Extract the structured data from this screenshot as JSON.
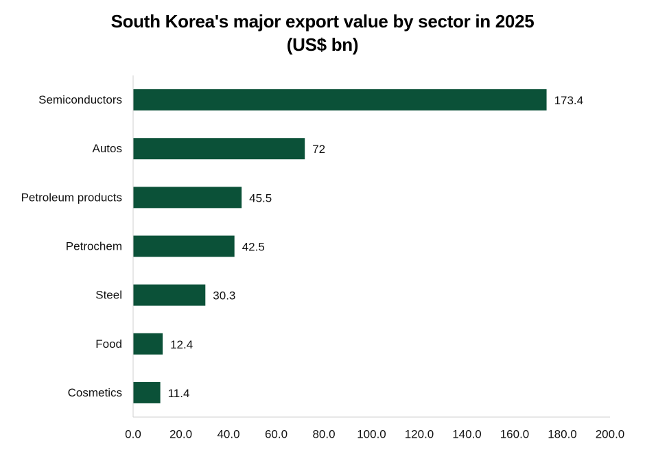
{
  "chart_data": {
    "type": "bar",
    "orientation": "horizontal",
    "title": "South Korea's major export value by sector in 2025",
    "subtitle": "(US$ bn)",
    "xlabel": "",
    "ylabel": "",
    "categories": [
      "Semiconductors",
      "Autos",
      "Petroleum products",
      "Petrochem",
      "Steel",
      "Food",
      "Cosmetics"
    ],
    "values": [
      173.4,
      72,
      45.5,
      42.5,
      30.3,
      12.4,
      11.4
    ],
    "value_labels": [
      "173.4",
      "72",
      "45.5",
      "42.5",
      "30.3",
      "12.4",
      "11.4"
    ],
    "xlim": [
      0,
      200
    ],
    "x_ticks": [
      "0.0",
      "20.0",
      "40.0",
      "60.0",
      "80.0",
      "100.0",
      "120.0",
      "140.0",
      "160.0",
      "180.0",
      "200.0"
    ],
    "grid": false,
    "legend": "none",
    "bar_color": "#0b5138"
  }
}
